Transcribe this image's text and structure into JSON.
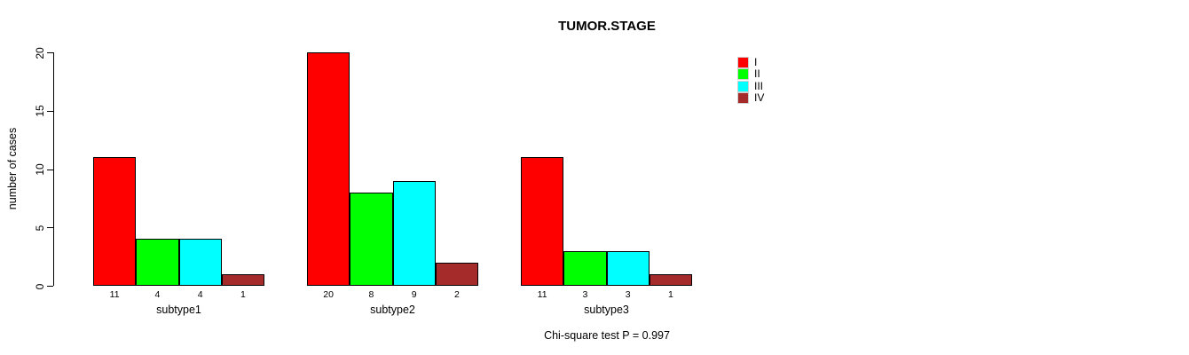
{
  "chart_data": {
    "type": "bar",
    "title": "TUMOR.STAGE",
    "ylabel": "number of cases",
    "xlabel": "",
    "ylim": [
      0,
      20
    ],
    "yticks": [
      0,
      5,
      10,
      15,
      20
    ],
    "grid": false,
    "categories": [
      "subtype1",
      "subtype2",
      "subtype3"
    ],
    "series": [
      {
        "name": "I",
        "color": "#ff0000",
        "values": [
          11,
          20,
          11
        ]
      },
      {
        "name": "II",
        "color": "#00ff00",
        "values": [
          4,
          8,
          3
        ]
      },
      {
        "name": "III",
        "color": "#00ffff",
        "values": [
          4,
          9,
          3
        ]
      },
      {
        "name": "IV",
        "color": "#a52a2a",
        "values": [
          1,
          2,
          1
        ]
      }
    ],
    "bar_value_labels": {
      "subtype1": [
        11,
        4,
        4,
        1
      ],
      "subtype2": [
        20,
        8,
        9,
        2
      ],
      "subtype3": [
        11,
        3,
        3,
        1
      ]
    },
    "legend_position": "right-top",
    "legend_entries": [
      "I",
      "II",
      "III",
      "IV"
    ],
    "annotation": "Chi-square test P = 0.997"
  },
  "colors": {
    "background": "#ffffff",
    "axis": "#000000",
    "bar_border": "#000000",
    "text": "#000000"
  }
}
